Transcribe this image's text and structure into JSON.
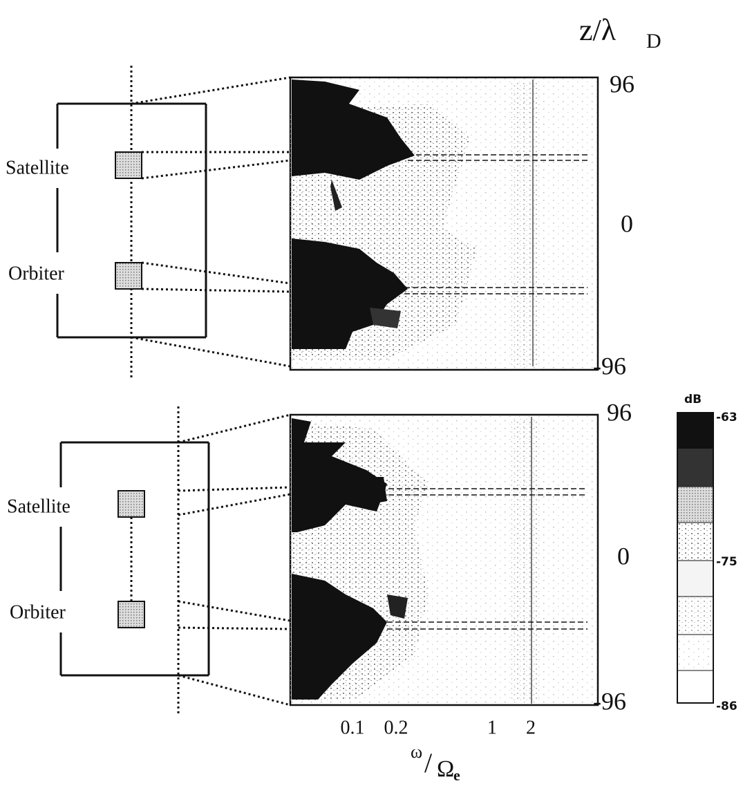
{
  "y_axis": {
    "label": "z/λ",
    "label_subscript": "D"
  },
  "panels": [
    {
      "objects": [
        "Satellite",
        "Orbiter"
      ],
      "y_ticks": [
        96,
        0,
        -96
      ]
    },
    {
      "objects": [
        "Satellite",
        "Orbiter"
      ],
      "y_ticks": [
        96,
        0,
        -96
      ]
    }
  ],
  "x_axis": {
    "ticks": [
      0.1,
      0.2,
      1,
      2
    ],
    "label": "ω",
    "label_denominator": "Ω",
    "label_subscript": "e"
  },
  "colorbar": {
    "unit": "dB",
    "ticks": [
      -63,
      -75,
      -86
    ]
  }
}
